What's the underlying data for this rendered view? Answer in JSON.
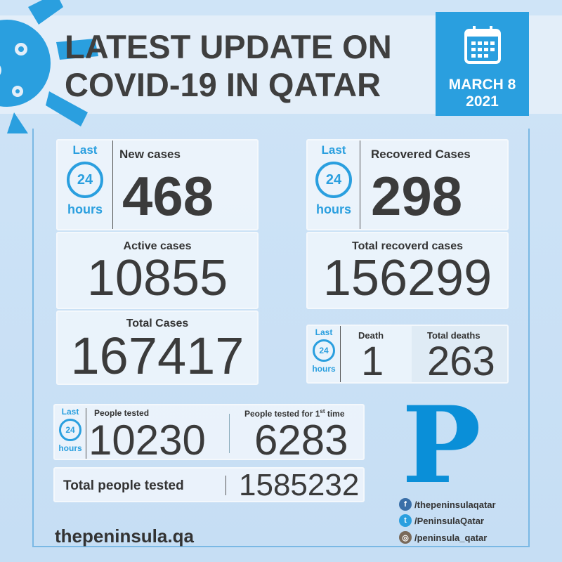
{
  "header": {
    "title_line1": "LATEST UPDATE ON",
    "title_line2": "COVID-19 IN QATAR",
    "date_line1": "MARCH 8",
    "date_line2": "2021"
  },
  "period": {
    "last": "Last",
    "number": "24",
    "hours": "hours"
  },
  "new_cases": {
    "label": "New cases",
    "value": "468"
  },
  "active_cases": {
    "label": "Active cases",
    "value": "10855"
  },
  "total_cases": {
    "label": "Total Cases",
    "value": "167417"
  },
  "recovered": {
    "label": "Recovered Cases",
    "value": "298"
  },
  "total_recovered": {
    "label": "Total recoverd cases",
    "value": "156299"
  },
  "death": {
    "label": "Death",
    "value": "1"
  },
  "total_deaths": {
    "label": "Total deaths",
    "value": "263"
  },
  "people_tested": {
    "label": "People tested",
    "value": "10230"
  },
  "first_time": {
    "label": "People tested for 1",
    "sup": "st",
    "label_end": " time",
    "value": "6283"
  },
  "total_tested": {
    "label": "Total people tested",
    "value": "1585232"
  },
  "footer": {
    "website": "thepeninsula.qa",
    "logo_letter": "P",
    "facebook": "/thepeninsulaqatar",
    "twitter": "/PeninsulaQatar",
    "instagram": "/peninsula_qatar"
  },
  "colors": {
    "accent": "#2a9fdf",
    "text": "#3d3d3d",
    "background": "#cfe4f7"
  }
}
